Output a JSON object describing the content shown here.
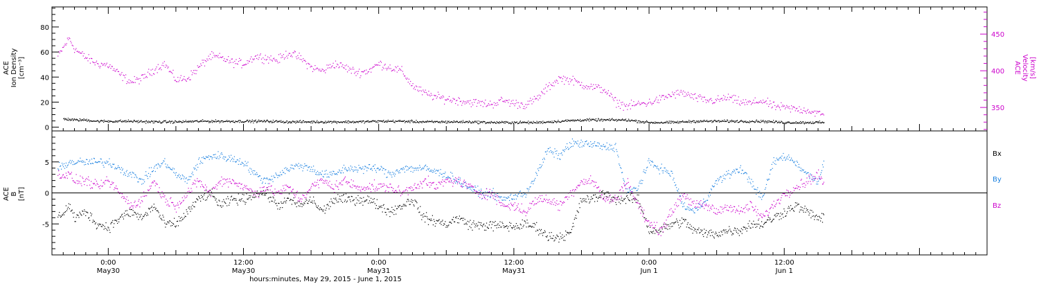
{
  "chart_data": [
    {
      "type": "scatter",
      "panel": "top",
      "ylabel_left": [
        "ACE",
        "Ion Density",
        "[cm⁻³]"
      ],
      "ylabel_right": [
        "ACE",
        "Velocity",
        "[km/s]"
      ],
      "ylim_left": [
        -3,
        96
      ],
      "yticks_left": [
        0,
        20,
        40,
        60,
        80
      ],
      "ylim_right": [
        318,
        487
      ],
      "yticks_right": [
        350,
        400,
        450
      ],
      "colors": {
        "density": "#000000",
        "velocity": "#cc00cc"
      },
      "series": [
        {
          "axis": "left",
          "x_hours": [
            -4,
            -3,
            -2,
            -1,
            0,
            2,
            4,
            6,
            8,
            10,
            12,
            14,
            16,
            18,
            20,
            22,
            24,
            26,
            28,
            30,
            32,
            34,
            36,
            38,
            40,
            42,
            44,
            46,
            48,
            50,
            52,
            54,
            56,
            58,
            60,
            62,
            63.5
          ],
          "values": [
            7,
            6,
            6,
            5,
            5,
            5,
            4.5,
            4.5,
            5,
            5,
            5,
            5,
            4.5,
            4.5,
            4.5,
            4.5,
            5,
            5,
            4.5,
            4.5,
            4.5,
            4,
            4,
            4,
            5,
            6,
            6,
            6,
            4,
            4,
            5,
            5,
            5,
            5,
            4,
            4,
            4
          ]
        },
        {
          "axis": "right",
          "x_hours": [
            -4.5,
            -3.5,
            -3,
            -2,
            -1,
            0,
            1,
            2,
            3,
            4,
            5,
            5.5,
            6,
            7,
            8,
            9,
            10,
            11,
            12,
            13,
            14,
            15,
            16,
            17,
            18,
            19,
            20,
            21,
            22,
            23,
            24,
            25,
            26,
            27,
            28,
            29,
            30,
            31,
            32,
            33,
            34,
            35,
            36,
            37,
            38,
            39,
            40,
            41,
            42,
            43,
            44,
            45,
            46,
            47,
            48,
            49,
            50,
            51,
            52,
            53,
            54,
            55,
            56,
            57,
            58,
            59,
            60,
            61,
            62,
            63,
            63.5
          ],
          "values": [
            420,
            445,
            430,
            418,
            410,
            408,
            395,
            385,
            390,
            402,
            410,
            398,
            388,
            390,
            405,
            420,
            418,
            412,
            410,
            420,
            418,
            415,
            425,
            418,
            405,
            400,
            410,
            405,
            398,
            400,
            410,
            405,
            400,
            380,
            370,
            365,
            362,
            360,
            358,
            356,
            355,
            360,
            356,
            354,
            362,
            378,
            390,
            388,
            382,
            378,
            375,
            358,
            352,
            355,
            357,
            362,
            368,
            370,
            364,
            360,
            360,
            364,
            358,
            356,
            360,
            352,
            350,
            348,
            347,
            342,
            340
          ]
        }
      ]
    },
    {
      "type": "scatter",
      "panel": "bottom",
      "ylabel": [
        "ACE",
        "B",
        "[nT]"
      ],
      "ylim": [
        -10,
        10
      ],
      "yticks": [
        -5,
        0,
        5
      ],
      "legend": [
        "Bx",
        "By",
        "Bz"
      ],
      "legend_placement": "right",
      "colors": {
        "Bx": "#000000",
        "By": "#1a80e0",
        "Bz": "#cc00cc"
      },
      "series": [
        {
          "name": "Bx",
          "x_hours": [
            -4.5,
            -3.5,
            -3,
            -2,
            -1,
            0,
            1,
            2,
            3,
            4,
            5,
            6,
            7,
            8,
            9,
            10,
            11,
            12,
            13,
            14,
            15,
            16,
            17,
            18,
            19,
            20,
            21,
            22,
            23,
            24,
            25,
            26,
            27,
            28,
            29,
            30,
            31,
            32,
            33,
            34,
            35,
            36,
            37,
            38,
            39,
            40,
            41,
            42,
            43,
            44,
            45,
            46,
            47,
            48,
            49,
            50,
            51,
            52,
            53,
            54,
            55,
            56,
            57,
            58,
            59,
            60,
            61,
            62,
            63,
            63.5
          ],
          "values": [
            -4,
            -2,
            -4,
            -3,
            -5,
            -5.5,
            -4,
            -3,
            -4,
            -2,
            -5,
            -5,
            -3,
            -1,
            0,
            -2,
            -1,
            -1,
            0,
            0,
            -2,
            -1,
            -2,
            -1,
            -3,
            -1,
            -1,
            -1,
            -1,
            -2,
            -3,
            -2,
            -1,
            -4,
            -4.5,
            -5,
            -4,
            -5,
            -5.2,
            -5.2,
            -5.3,
            -5.4,
            -5,
            -5.5,
            -7,
            -7,
            -6.5,
            -1,
            -1,
            0,
            -1,
            -1,
            -1,
            -6,
            -6,
            -5,
            -4.5,
            -6,
            -6.5,
            -6.5,
            -6,
            -6,
            -5,
            -5,
            -4,
            -3,
            -2,
            -3,
            -4,
            -4
          ]
        },
        {
          "name": "By",
          "x_hours": [
            -4.5,
            -3.5,
            -3,
            -2,
            -1,
            0,
            1,
            2,
            3,
            4,
            5,
            6,
            7,
            8,
            9,
            10,
            11,
            12,
            13,
            14,
            15,
            16,
            17,
            18,
            19,
            20,
            21,
            22,
            23,
            24,
            25,
            26,
            27,
            28,
            29,
            30,
            31,
            32,
            33,
            34,
            35,
            36,
            37,
            38,
            39,
            40,
            41,
            42,
            43,
            44,
            45,
            46,
            47,
            48,
            49,
            50,
            51,
            52,
            53,
            54,
            55,
            56,
            57,
            58,
            59,
            60,
            61,
            62,
            63,
            63.5
          ],
          "values": [
            4,
            5,
            5,
            5,
            5,
            5,
            4,
            3,
            2,
            4,
            5,
            3,
            2,
            5,
            6,
            6,
            5.5,
            5,
            3,
            2,
            3,
            4,
            4.5,
            4,
            3,
            3,
            4,
            4,
            4,
            4,
            3,
            4,
            4,
            4,
            3.5,
            3,
            2,
            1,
            0,
            0,
            -1,
            -0.5,
            0,
            3,
            7,
            6,
            8,
            8,
            7.8,
            7.5,
            7.5,
            0,
            1,
            5,
            4,
            3,
            -2,
            -3,
            -1,
            2,
            3,
            4,
            2,
            -1,
            5,
            6,
            5,
            3,
            2,
            5
          ]
        },
        {
          "name": "Bz",
          "x_hours": [
            -4.5,
            -3.5,
            -3,
            -2,
            -1,
            0,
            1,
            2,
            3,
            4,
            5,
            6,
            7,
            8,
            9,
            10,
            11,
            12,
            13,
            14,
            15,
            16,
            17,
            18,
            19,
            20,
            21,
            22,
            23,
            24,
            25,
            26,
            27,
            28,
            29,
            30,
            31,
            32,
            33,
            34,
            35,
            36,
            37,
            38,
            39,
            40,
            41,
            42,
            43,
            44,
            45,
            46,
            47,
            48,
            49,
            50,
            51,
            52,
            53,
            54,
            55,
            56,
            57,
            58,
            59,
            60,
            61,
            62,
            63,
            63.5
          ],
          "values": [
            3,
            3,
            2,
            2,
            1,
            2,
            0,
            -2,
            -1,
            2,
            -1,
            -2,
            0,
            2,
            0,
            2,
            2,
            1,
            0,
            1,
            0,
            1,
            -1,
            1,
            2,
            1,
            2,
            1,
            1,
            1,
            1,
            0,
            1,
            2,
            1,
            2,
            2,
            1,
            0,
            0,
            -2,
            -2,
            -3,
            -1,
            -1,
            -2,
            0,
            2,
            2,
            -1,
            -1,
            2,
            -2,
            -5,
            -6,
            -3,
            0,
            -2,
            -2,
            -3,
            -2,
            -3,
            -2,
            -4,
            -2,
            0,
            1,
            2,
            3,
            1.5
          ]
        }
      ]
    }
  ],
  "xaxis": {
    "xlim_hours": [
      -5,
      78
    ],
    "ticks": [
      {
        "h": 0,
        "time": "0:00",
        "date": "May30"
      },
      {
        "h": 12,
        "time": "12:00",
        "date": "May30"
      },
      {
        "h": 24,
        "time": "0:00",
        "date": "May31"
      },
      {
        "h": 36,
        "time": "12:00",
        "date": "May31"
      },
      {
        "h": 48,
        "time": "0:00",
        "date": "Jun 1"
      },
      {
        "h": 60,
        "time": "12:00",
        "date": "Jun 1"
      }
    ],
    "label": "hours:minutes, May 29, 2015 - June  1, 2015"
  }
}
